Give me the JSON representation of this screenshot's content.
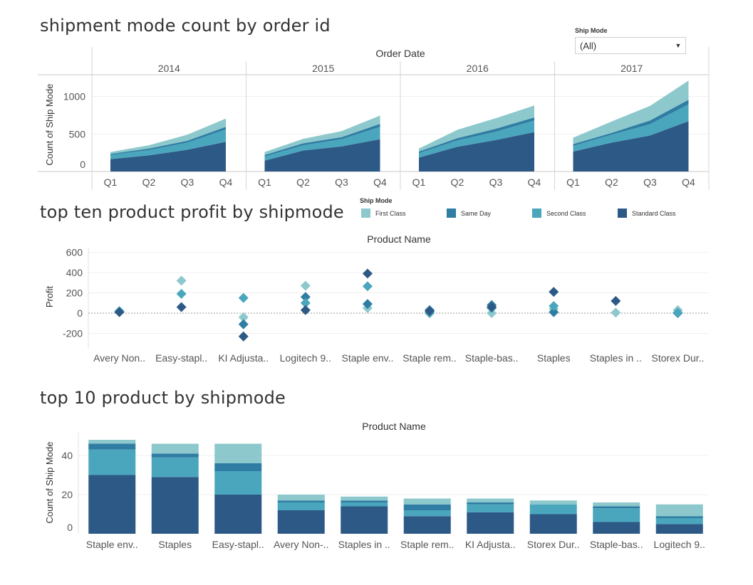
{
  "colors": {
    "first_class": "#8cc8cc",
    "same_day": "#2f7da3",
    "second_class": "#4aa6bc",
    "standard_class": "#2d5986"
  },
  "filter": {
    "label": "Ship Mode",
    "value": "(All)",
    "icon": "dropdown-arrow-icon"
  },
  "legend": {
    "title": "Ship Mode",
    "items": [
      "First Class",
      "Same Day",
      "Second Class",
      "Standard Class"
    ]
  },
  "chart_data": [
    {
      "type": "area",
      "title": "shipment mode count by order id",
      "column_header": "Order Date",
      "ylabel": "Count of Ship Mode",
      "ylim": [
        0,
        1200
      ],
      "yticks": [
        0,
        500,
        1000
      ],
      "panels": [
        "2014",
        "2015",
        "2016",
        "2017"
      ],
      "quarters": [
        "Q1",
        "Q2",
        "Q3",
        "Q4"
      ],
      "stack_order": [
        "Standard Class",
        "Second Class",
        "Same Day",
        "First Class"
      ],
      "series": {
        "Standard Class": [
          [
            165,
            215,
            290,
            395
          ],
          [
            145,
            280,
            335,
            430
          ],
          [
            185,
            330,
            420,
            525
          ],
          [
            265,
            385,
            480,
            670
          ]
        ],
        "Second Class": [
          [
            55,
            70,
            95,
            165
          ],
          [
            55,
            70,
            95,
            165
          ],
          [
            60,
            85,
            110,
            155
          ],
          [
            75,
            105,
            150,
            225
          ]
        ],
        "Same Day": [
          [
            15,
            20,
            25,
            35
          ],
          [
            20,
            25,
            28,
            40
          ],
          [
            20,
            30,
            40,
            40
          ],
          [
            25,
            25,
            50,
            60
          ]
        ],
        "First Class": [
          [
            25,
            45,
            80,
            110
          ],
          [
            40,
            60,
            80,
            110
          ],
          [
            40,
            110,
            140,
            160
          ],
          [
            85,
            150,
            195,
            255
          ]
        ]
      }
    },
    {
      "type": "scatter",
      "title": "top ten product profit by shipmode",
      "column_header": "Product Name",
      "ylabel": "Profit",
      "ylim": [
        -280,
        620
      ],
      "yticks": [
        600,
        400,
        200,
        0,
        -200
      ],
      "categories": [
        "Avery Non..",
        "Easy-stapl..",
        "KI Adjusta..",
        "Logitech 9..",
        "Staple env..",
        "Staple rem..",
        "Staple-bas..",
        "Staples",
        "Staples in ..",
        "Storex Dur.."
      ],
      "series": [
        {
          "name": "First Class",
          "values": [
            15,
            320,
            -40,
            270,
            50,
            5,
            0,
            40,
            5,
            30
          ]
        },
        {
          "name": "Same Day",
          "values": [
            null,
            null,
            -110,
            160,
            90,
            30,
            80,
            10,
            null,
            0
          ]
        },
        {
          "name": "Second Class",
          "values": [
            20,
            190,
            150,
            100,
            265,
            0,
            50,
            70,
            null,
            5
          ]
        },
        {
          "name": "Standard Class",
          "values": [
            10,
            60,
            -230,
            30,
            390,
            20,
            60,
            210,
            120,
            null
          ]
        }
      ]
    },
    {
      "type": "bar",
      "stacked": true,
      "title": "top 10 product by shipmode",
      "column_header": "Product Name",
      "ylabel": "Count of Ship Mode",
      "ylim": [
        0,
        52
      ],
      "yticks": [
        0,
        20,
        40
      ],
      "categories": [
        "Staple env..",
        "Staples",
        "Easy-stapl..",
        "Avery Non-..",
        "Staples in ..",
        "Staple rem..",
        "KI Adjusta..",
        "Storex Dur..",
        "Staple-bas..",
        "Logitech 9.."
      ],
      "series": [
        {
          "name": "Standard Class",
          "values": [
            30,
            29,
            20,
            12,
            14,
            9,
            11,
            10,
            6,
            5
          ]
        },
        {
          "name": "Second Class",
          "values": [
            13,
            10,
            12,
            4,
            2,
            3,
            4,
            5,
            7,
            3
          ]
        },
        {
          "name": "Same Day",
          "values": [
            3,
            2,
            4,
            1,
            1,
            3,
            1,
            0,
            1,
            1
          ]
        },
        {
          "name": "First Class",
          "values": [
            2,
            5,
            10,
            3,
            2,
            3,
            2,
            2,
            2,
            6
          ]
        }
      ]
    }
  ]
}
